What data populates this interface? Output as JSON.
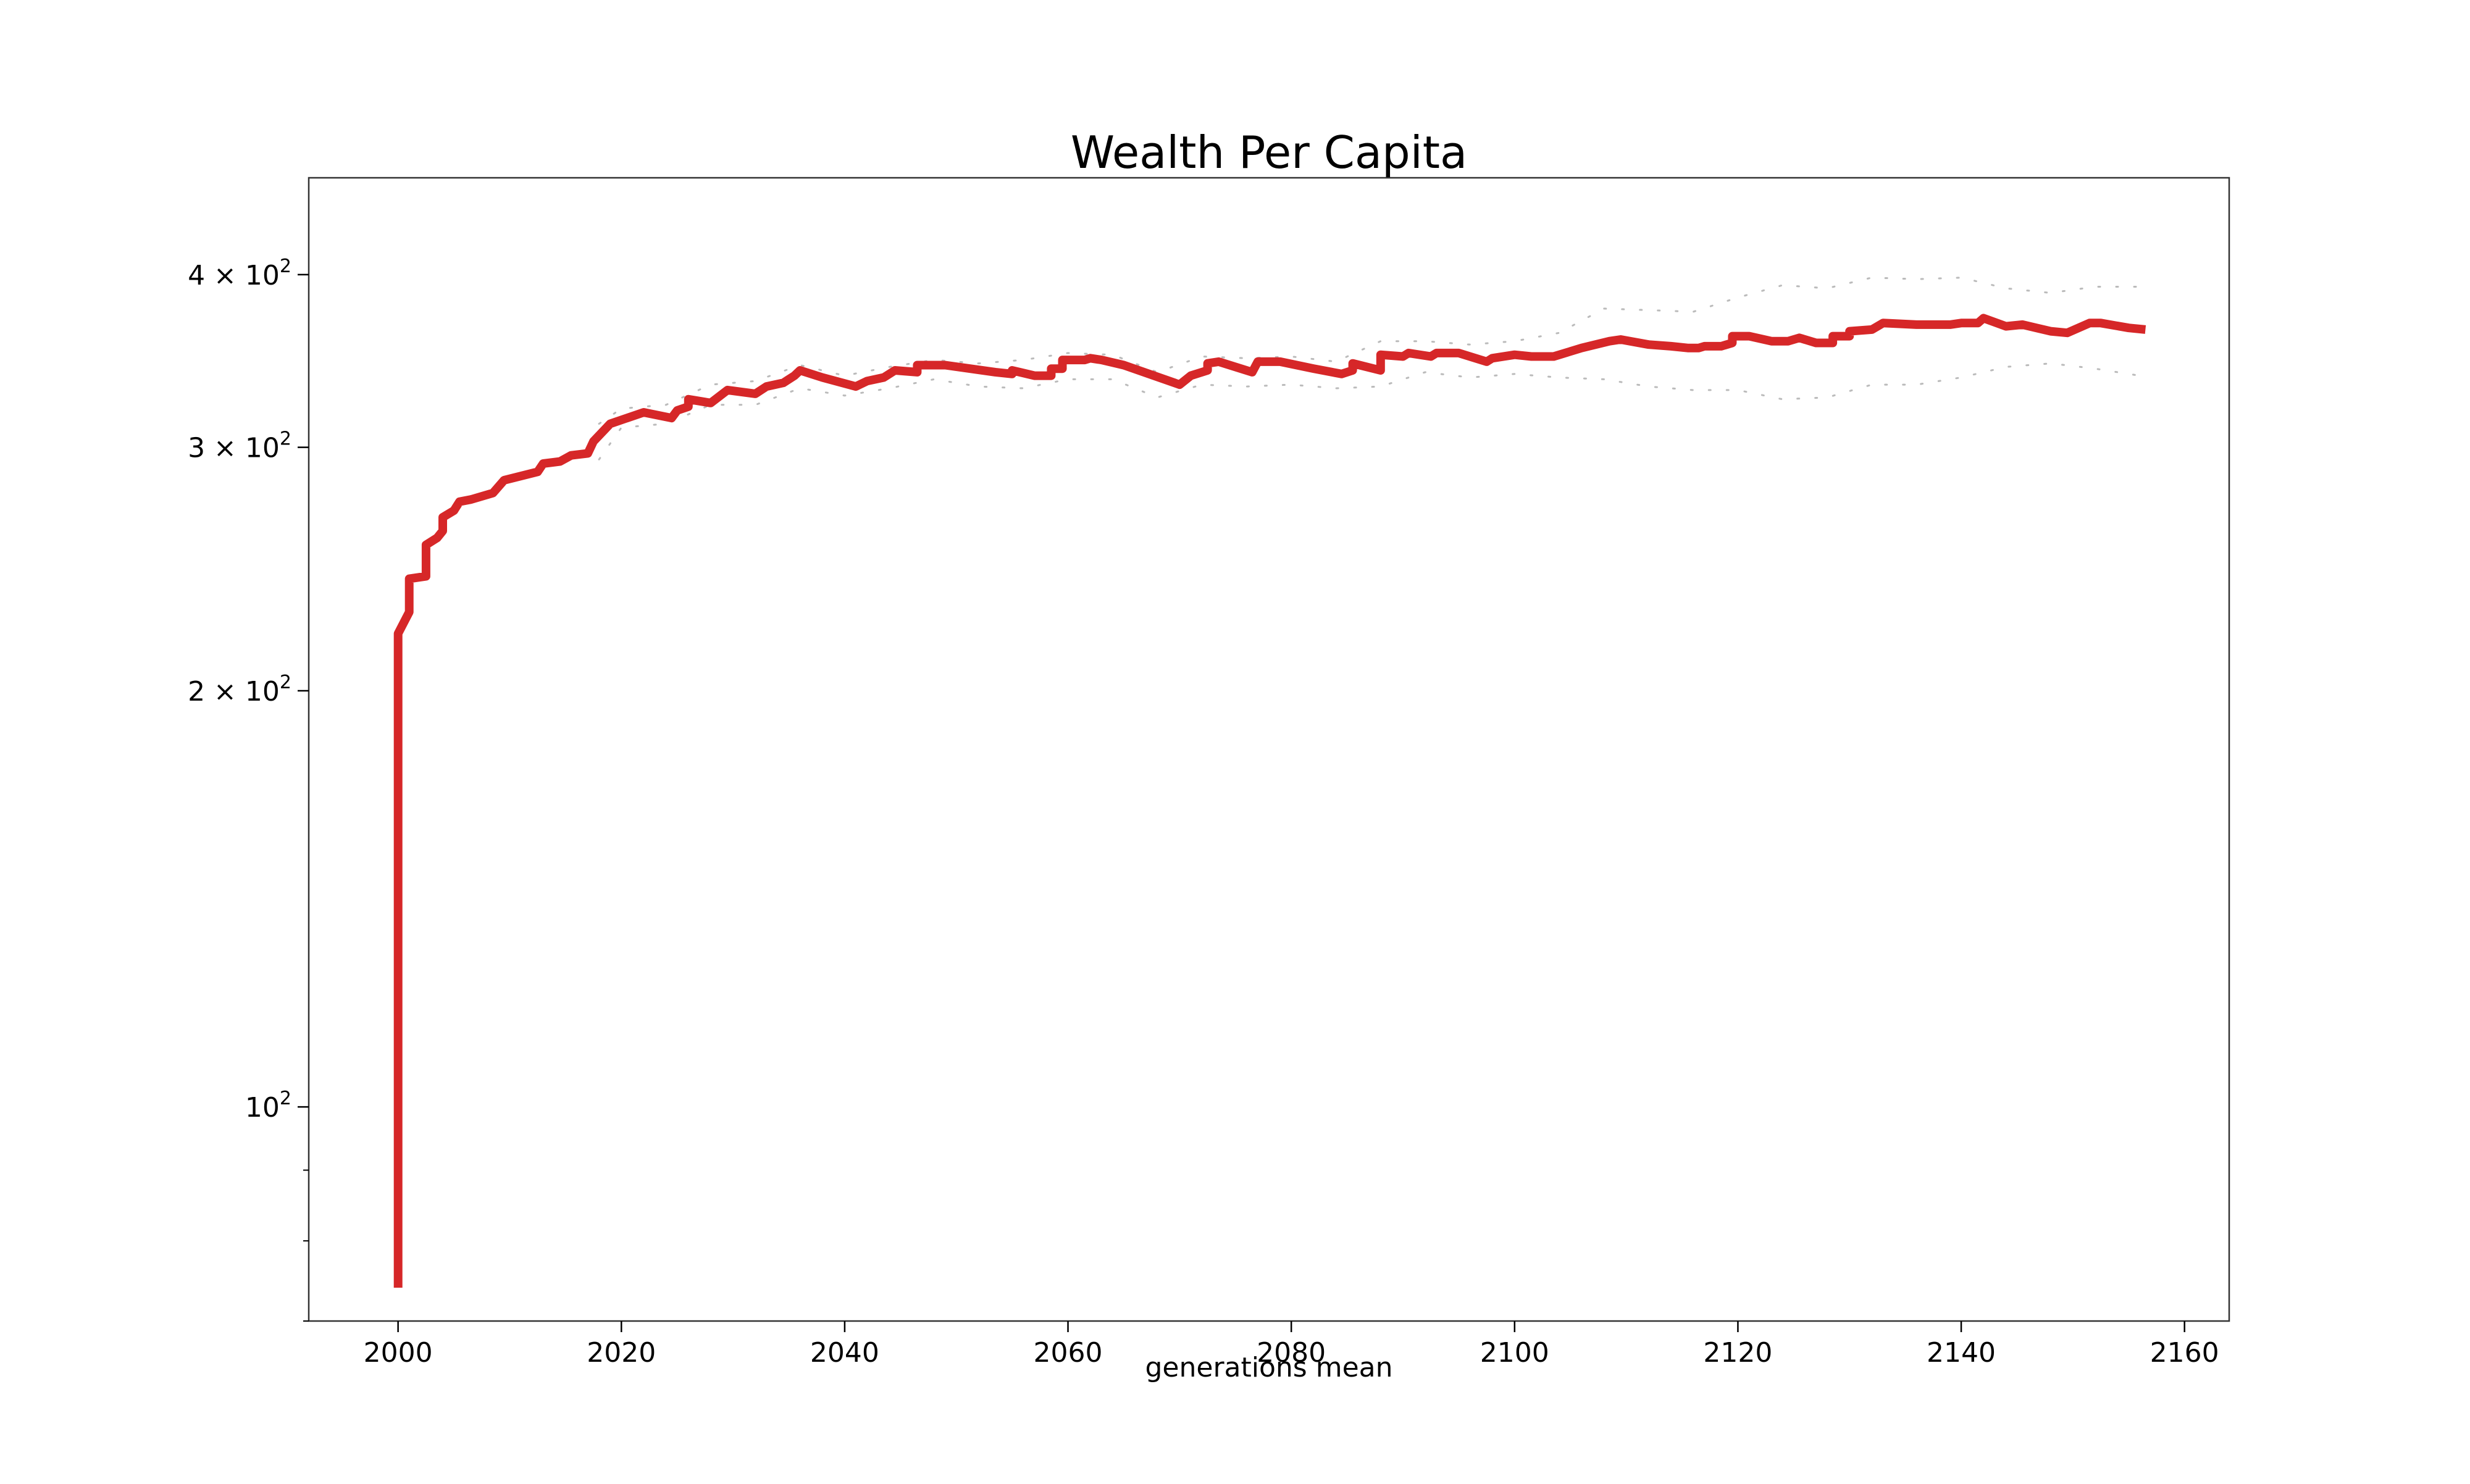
{
  "chart_data": {
    "type": "line",
    "title": "Wealth Per Capita",
    "xlabel": "generations mean",
    "ylabel": "",
    "yscale": "log",
    "xlim": [
      1992,
      2164
    ],
    "ylim": [
      70,
      470
    ],
    "grid": false,
    "legend": "none",
    "colors": {
      "line": "#d62728",
      "band": "#bbbbbb",
      "axes": "#000000"
    },
    "x_ticks": [
      {
        "value": 2000,
        "label": "2000"
      },
      {
        "value": 2020,
        "label": "2020"
      },
      {
        "value": 2040,
        "label": "2040"
      },
      {
        "value": 2060,
        "label": "2060"
      },
      {
        "value": 2080,
        "label": "2080"
      },
      {
        "value": 2100,
        "label": "2100"
      },
      {
        "value": 2120,
        "label": "2120"
      },
      {
        "value": 2140,
        "label": "2140"
      },
      {
        "value": 2160,
        "label": "2160"
      }
    ],
    "y_ticks": [
      {
        "value": 100,
        "base": "10",
        "exp": "2"
      },
      {
        "value": 200,
        "base": "2 × 10",
        "exp": "2"
      },
      {
        "value": 300,
        "base": "3 × 10",
        "exp": "2"
      },
      {
        "value": 400,
        "base": "4 × 10",
        "exp": "2"
      }
    ],
    "y_minor_ticks": [
      70,
      80,
      90
    ],
    "series": [
      {
        "values": [
          [
            2000,
            74
          ],
          [
            2000,
            220
          ],
          [
            2001,
            228
          ],
          [
            2001,
            241
          ],
          [
            2002.5,
            242
          ],
          [
            2002.5,
            255
          ],
          [
            2003.5,
            258
          ],
          [
            2004,
            261
          ],
          [
            2004,
            267
          ],
          [
            2005,
            270
          ],
          [
            2005.5,
            274
          ],
          [
            2006.5,
            275
          ],
          [
            2008.5,
            278
          ],
          [
            2009.5,
            284
          ],
          [
            2012.5,
            288
          ],
          [
            2013,
            292
          ],
          [
            2014.5,
            293
          ],
          [
            2015.5,
            296
          ],
          [
            2017,
            297
          ],
          [
            2017.5,
            303
          ],
          [
            2019,
            312
          ],
          [
            2020.5,
            315
          ],
          [
            2022,
            318
          ],
          [
            2024.5,
            315
          ],
          [
            2025,
            319
          ],
          [
            2026,
            321
          ],
          [
            2026,
            325
          ],
          [
            2028,
            323
          ],
          [
            2029.5,
            330
          ],
          [
            2032,
            328
          ],
          [
            2033,
            332
          ],
          [
            2034.5,
            334
          ],
          [
            2035.5,
            338
          ],
          [
            2036,
            341
          ],
          [
            2038,
            337
          ],
          [
            2041,
            332
          ],
          [
            2042,
            335
          ],
          [
            2043.5,
            337
          ],
          [
            2044.5,
            341
          ],
          [
            2046.5,
            340
          ],
          [
            2046.5,
            344
          ],
          [
            2049,
            344
          ],
          [
            2053.5,
            340
          ],
          [
            2055,
            339
          ],
          [
            2055,
            341
          ],
          [
            2057,
            338
          ],
          [
            2058.5,
            338
          ],
          [
            2058.5,
            342
          ],
          [
            2059.5,
            342
          ],
          [
            2059.5,
            347
          ],
          [
            2061.5,
            347
          ],
          [
            2062,
            348
          ],
          [
            2063,
            347
          ],
          [
            2065,
            344
          ],
          [
            2070,
            333
          ],
          [
            2071,
            338
          ],
          [
            2072.5,
            341
          ],
          [
            2072.5,
            345
          ],
          [
            2073.5,
            346
          ],
          [
            2076.5,
            340
          ],
          [
            2077,
            346
          ],
          [
            2079,
            346
          ],
          [
            2082,
            342
          ],
          [
            2084.5,
            339
          ],
          [
            2085.5,
            341
          ],
          [
            2085.5,
            345
          ],
          [
            2088,
            341
          ],
          [
            2088,
            350
          ],
          [
            2090,
            349
          ],
          [
            2090.5,
            351
          ],
          [
            2092.5,
            349
          ],
          [
            2093,
            351
          ],
          [
            2095,
            351
          ],
          [
            2097.5,
            346
          ],
          [
            2098,
            348
          ],
          [
            2100,
            350
          ],
          [
            2101.5,
            349
          ],
          [
            2103.5,
            349
          ],
          [
            2106,
            354
          ],
          [
            2108.5,
            358
          ],
          [
            2109.5,
            359
          ],
          [
            2112,
            356
          ],
          [
            2114,
            355
          ],
          [
            2115.5,
            354
          ],
          [
            2116.5,
            354
          ],
          [
            2117,
            355
          ],
          [
            2118.5,
            355
          ],
          [
            2119.5,
            357
          ],
          [
            2119.5,
            361
          ],
          [
            2121,
            361
          ],
          [
            2123,
            358
          ],
          [
            2124.5,
            358
          ],
          [
            2125.5,
            360
          ],
          [
            2127,
            357
          ],
          [
            2128.5,
            357
          ],
          [
            2128.5,
            361
          ],
          [
            2130,
            361
          ],
          [
            2130,
            364
          ],
          [
            2132,
            365
          ],
          [
            2133,
            369
          ],
          [
            2136,
            368
          ],
          [
            2137.5,
            368
          ],
          [
            2139,
            368
          ],
          [
            2140,
            369
          ],
          [
            2141.5,
            369
          ],
          [
            2142,
            372
          ],
          [
            2144,
            367
          ],
          [
            2145.5,
            368
          ],
          [
            2148,
            364
          ],
          [
            2149.5,
            363
          ],
          [
            2151.5,
            369
          ],
          [
            2152.5,
            369
          ],
          [
            2155,
            366
          ],
          [
            2156.5,
            365
          ]
        ]
      }
    ],
    "band_upper": [
      [
        2018,
        312
      ],
      [
        2020,
        320
      ],
      [
        2024,
        322
      ],
      [
        2028,
        333
      ],
      [
        2032,
        335
      ],
      [
        2036,
        344
      ],
      [
        2040,
        338
      ],
      [
        2044,
        343
      ],
      [
        2048,
        347
      ],
      [
        2052,
        345
      ],
      [
        2056,
        347
      ],
      [
        2060,
        351
      ],
      [
        2064,
        350
      ],
      [
        2068,
        340
      ],
      [
        2072,
        349
      ],
      [
        2076,
        348
      ],
      [
        2080,
        349
      ],
      [
        2084,
        346
      ],
      [
        2088,
        358
      ],
      [
        2092,
        358
      ],
      [
        2096,
        356
      ],
      [
        2100,
        358
      ],
      [
        2104,
        363
      ],
      [
        2108,
        378
      ],
      [
        2112,
        377
      ],
      [
        2116,
        376
      ],
      [
        2120,
        385
      ],
      [
        2124,
        393
      ],
      [
        2128,
        391
      ],
      [
        2132,
        398
      ],
      [
        2136,
        397
      ],
      [
        2140,
        398
      ],
      [
        2144,
        391
      ],
      [
        2148,
        388
      ],
      [
        2152,
        392
      ],
      [
        2156,
        392
      ]
    ],
    "band_lower": [
      [
        2018,
        294
      ],
      [
        2020,
        310
      ],
      [
        2024,
        312
      ],
      [
        2028,
        322
      ],
      [
        2032,
        322
      ],
      [
        2036,
        331
      ],
      [
        2040,
        327
      ],
      [
        2044,
        331
      ],
      [
        2048,
        336
      ],
      [
        2052,
        332
      ],
      [
        2056,
        331
      ],
      [
        2060,
        336
      ],
      [
        2064,
        336
      ],
      [
        2068,
        326
      ],
      [
        2072,
        333
      ],
      [
        2076,
        332
      ],
      [
        2080,
        333
      ],
      [
        2084,
        331
      ],
      [
        2088,
        332
      ],
      [
        2092,
        340
      ],
      [
        2096,
        337
      ],
      [
        2100,
        339
      ],
      [
        2104,
        337
      ],
      [
        2108,
        336
      ],
      [
        2112,
        332
      ],
      [
        2116,
        330
      ],
      [
        2120,
        330
      ],
      [
        2124,
        325
      ],
      [
        2128,
        326
      ],
      [
        2132,
        333
      ],
      [
        2136,
        333
      ],
      [
        2140,
        337
      ],
      [
        2144,
        343
      ],
      [
        2148,
        345
      ],
      [
        2152,
        342
      ],
      [
        2156,
        338
      ]
    ]
  }
}
